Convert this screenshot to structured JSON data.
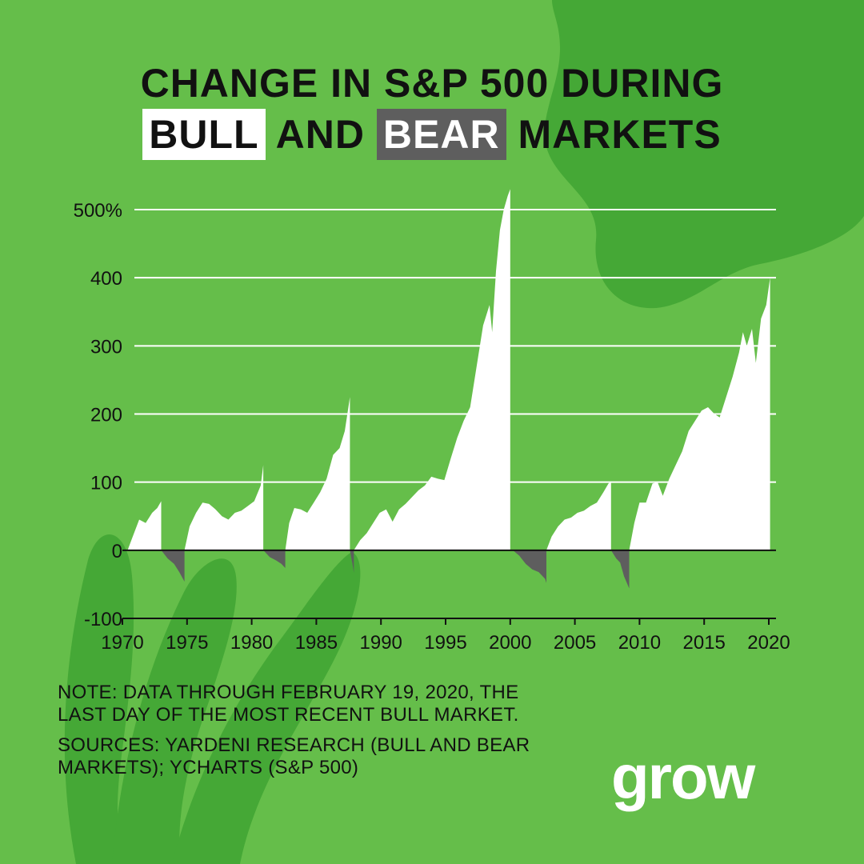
{
  "title": {
    "line1": "CHANGE IN S&P 500 DURING",
    "bull": "BULL",
    "and": "AND",
    "bear": "BEAR",
    "markets": "MARKETS"
  },
  "notes": {
    "note": "NOTE: DATA THROUGH FEBRUARY 19, 2020, THE LAST DAY OF THE MOST RECENT BULL MARKET.",
    "sources": "SOURCES: YARDENI RESEARCH (BULL AND BEAR MARKETS); YCHARTS (S&P 500)"
  },
  "logo": "grow",
  "colors": {
    "background": "#65be4a",
    "background_shape": "#45a836",
    "bull": "#ffffff",
    "bear": "#5e5e5e",
    "gridline": "#ffffff",
    "text": "#111111"
  },
  "chart_data": {
    "type": "area",
    "title": "CHANGE IN S&P 500 DURING BULL AND BEAR MARKETS",
    "xlabel": "",
    "ylabel": "",
    "xlim": [
      1970,
      2020.5
    ],
    "ylim": [
      -100,
      500
    ],
    "x_ticks": [
      {
        "value": 1970,
        "label": "1970"
      },
      {
        "value": 1975,
        "label": "1975"
      },
      {
        "value": 1980,
        "label": "1980"
      },
      {
        "value": 1985,
        "label": "1985"
      },
      {
        "value": 1990,
        "label": "1990"
      },
      {
        "value": 1995,
        "label": "1995"
      },
      {
        "value": 2000,
        "label": "2000"
      },
      {
        "value": 2005,
        "label": "2005"
      },
      {
        "value": 2010,
        "label": "2010"
      },
      {
        "value": 2015,
        "label": "2015"
      },
      {
        "value": 2020,
        "label": "2020"
      }
    ],
    "y_ticks": [
      {
        "value": 500,
        "label": "500%"
      },
      {
        "value": 400,
        "label": "400"
      },
      {
        "value": 300,
        "label": "300"
      },
      {
        "value": 200,
        "label": "200"
      },
      {
        "value": 100,
        "label": "100"
      },
      {
        "value": 0,
        "label": "0"
      },
      {
        "value": -100,
        "label": "-100"
      }
    ],
    "grid": true,
    "legend": "none",
    "series": [
      {
        "market": "bull",
        "x": [
          1970.4,
          1970.8,
          1971.3,
          1971.8,
          1972.3,
          1972.7,
          1973.0
        ],
        "y": [
          0,
          20,
          45,
          40,
          55,
          62,
          72
        ]
      },
      {
        "market": "bear",
        "x": [
          1973.0,
          1973.5,
          1974.0,
          1974.4,
          1974.8
        ],
        "y": [
          0,
          -12,
          -20,
          -32,
          -46
        ]
      },
      {
        "market": "bull",
        "x": [
          1974.8,
          1975.2,
          1975.7,
          1976.2,
          1976.7,
          1977.2,
          1977.7,
          1978.2,
          1978.7,
          1979.2,
          1979.7,
          1980.2,
          1980.7,
          1980.9
        ],
        "y": [
          0,
          35,
          55,
          70,
          68,
          60,
          50,
          45,
          55,
          58,
          65,
          72,
          95,
          125
        ]
      },
      {
        "market": "bear",
        "x": [
          1980.9,
          1981.4,
          1981.9,
          1982.3,
          1982.6
        ],
        "y": [
          0,
          -10,
          -15,
          -20,
          -26
        ]
      },
      {
        "market": "bull",
        "x": [
          1982.6,
          1982.9,
          1983.3,
          1983.8,
          1984.3,
          1984.8,
          1985.3,
          1985.8,
          1986.3,
          1986.8,
          1987.2,
          1987.6
        ],
        "y": [
          0,
          40,
          62,
          60,
          55,
          70,
          85,
          105,
          140,
          150,
          175,
          225
        ]
      },
      {
        "market": "bear",
        "x": [
          1987.6,
          1987.8,
          1987.9
        ],
        "y": [
          0,
          -20,
          -33
        ]
      },
      {
        "market": "bull",
        "x": [
          1987.9,
          1988.4,
          1988.9,
          1989.4,
          1989.9,
          1990.4,
          1990.9,
          1991.4,
          1991.9,
          1992.4,
          1992.9,
          1993.4,
          1993.9,
          1994.4,
          1994.9,
          1995.4,
          1995.9,
          1996.4,
          1996.9,
          1997.4,
          1997.9,
          1998.4,
          1998.6,
          1998.9,
          1999.2,
          1999.5,
          1999.8,
          2000.0
        ],
        "y": [
          0,
          15,
          25,
          40,
          55,
          60,
          42,
          60,
          68,
          78,
          88,
          95,
          108,
          105,
          103,
          135,
          165,
          190,
          210,
          270,
          330,
          360,
          320,
          410,
          470,
          500,
          520,
          530
        ]
      },
      {
        "market": "bear",
        "x": [
          2000.2,
          2000.7,
          2001.2,
          2001.7,
          2002.2,
          2002.7,
          2002.8
        ],
        "y": [
          0,
          -8,
          -20,
          -28,
          -32,
          -42,
          -48
        ]
      },
      {
        "market": "bull",
        "x": [
          2002.8,
          2003.2,
          2003.7,
          2004.2,
          2004.7,
          2005.2,
          2005.7,
          2006.2,
          2006.7,
          2007.2,
          2007.6,
          2007.8
        ],
        "y": [
          0,
          20,
          35,
          45,
          48,
          55,
          58,
          65,
          70,
          85,
          98,
          101
        ]
      },
      {
        "market": "bear",
        "x": [
          2007.8,
          2008.2,
          2008.5,
          2008.8,
          2009.2
        ],
        "y": [
          0,
          -12,
          -18,
          -38,
          -56
        ]
      },
      {
        "market": "bull",
        "x": [
          2009.2,
          2009.6,
          2010.0,
          2010.5,
          2011.0,
          2011.4,
          2011.8,
          2012.3,
          2012.8,
          2013.3,
          2013.8,
          2014.3,
          2014.8,
          2015.3,
          2015.8,
          2016.2,
          2016.7,
          2017.2,
          2017.7,
          2018.0,
          2018.3,
          2018.7,
          2019.0,
          2019.4,
          2019.8,
          2020.1
        ],
        "y": [
          0,
          40,
          70,
          70,
          98,
          100,
          80,
          105,
          125,
          145,
          175,
          190,
          205,
          210,
          200,
          195,
          225,
          255,
          290,
          320,
          300,
          325,
          275,
          340,
          360,
          400
        ]
      }
    ]
  }
}
